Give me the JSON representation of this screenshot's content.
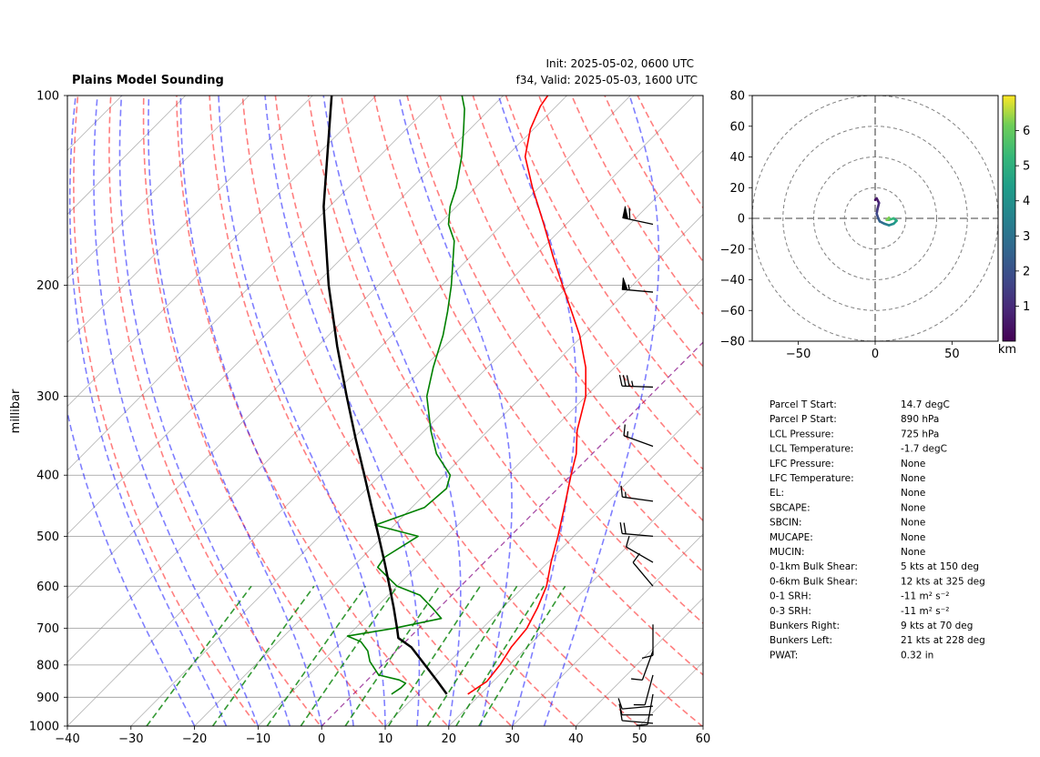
{
  "header": {
    "title": "Plains Model Sounding",
    "init": "Init: 2025-05-02, 0600 UTC",
    "valid": "f34, Valid: 2025-05-03, 1600 UTC"
  },
  "colors": {
    "temperature": "#ff0000",
    "dewpoint": "#008000",
    "parcel": "#000000",
    "dry_adiabat": "#ff0000",
    "moist_adiabat": "#0000ff",
    "mixing_ratio": "#008000",
    "isotherm": "#808080",
    "zero_isotherm": "#800080"
  },
  "chart_data": [
    {
      "type": "skew-t",
      "ylabel": "millibar",
      "y_scale": "log",
      "xlim": [
        -40,
        60
      ],
      "ylim": [
        1000,
        100
      ],
      "x_ticks": [
        "−40",
        "−30",
        "−20",
        "−10",
        "0",
        "10",
        "20",
        "30",
        "40",
        "50",
        "60"
      ],
      "y_ticks": [
        "100",
        "200",
        "300",
        "400",
        "500",
        "600",
        "700",
        "800",
        "900",
        "1000"
      ],
      "grid": true,
      "series": [
        {
          "key": "temperature",
          "points": [
            [
              890,
              18.0
            ],
            [
              850,
              19.0
            ],
            [
              800,
              18.5
            ],
            [
              750,
              17.5
            ],
            [
              700,
              17.0
            ],
            [
              650,
              15.5
            ],
            [
              600,
              13.5
            ],
            [
              550,
              10.5
            ],
            [
              500,
              7.5
            ],
            [
              450,
              4.0
            ],
            [
              400,
              0.0
            ],
            [
              370,
              -2.5
            ],
            [
              340,
              -6.0
            ],
            [
              300,
              -10.0
            ],
            [
              270,
              -14.5
            ],
            [
              240,
              -20.5
            ],
            [
              220,
              -25.5
            ],
            [
              200,
              -31.0
            ],
            [
              180,
              -37.0
            ],
            [
              160,
              -43.5
            ],
            [
              140,
              -51.0
            ],
            [
              125,
              -57.0
            ],
            [
              113,
              -60.5
            ],
            [
              104,
              -62.5
            ],
            [
              100,
              -63.0
            ]
          ]
        },
        {
          "key": "dewpoint",
          "points": [
            [
              890,
              6.0
            ],
            [
              870,
              6.5
            ],
            [
              855,
              6.5
            ],
            [
              845,
              5.0
            ],
            [
              830,
              1.0
            ],
            [
              790,
              -2.5
            ],
            [
              760,
              -4.5
            ],
            [
              735,
              -7.0
            ],
            [
              720,
              -10.0
            ],
            [
              700,
              -4.0
            ],
            [
              675,
              2.0
            ],
            [
              650,
              -1.0
            ],
            [
              620,
              -5.0
            ],
            [
              600,
              -10.0
            ],
            [
              560,
              -16.0
            ],
            [
              540,
              -16.5
            ],
            [
              500,
              -14.5
            ],
            [
              480,
              -23.0
            ],
            [
              450,
              -18.0
            ],
            [
              420,
              -17.5
            ],
            [
              400,
              -19.0
            ],
            [
              370,
              -24.5
            ],
            [
              340,
              -29.0
            ],
            [
              300,
              -35.0
            ],
            [
              270,
              -38.5
            ],
            [
              240,
              -42.0
            ],
            [
              220,
              -45.0
            ],
            [
              200,
              -48.5
            ],
            [
              170,
              -55.0
            ],
            [
              160,
              -58.5
            ],
            [
              150,
              -61.0
            ],
            [
              140,
              -63.0
            ],
            [
              125,
              -67.0
            ],
            [
              113,
              -71.0
            ],
            [
              105,
              -74.0
            ],
            [
              100,
              -76.5
            ]
          ]
        },
        {
          "key": "parcel",
          "points": [
            [
              890,
              14.7
            ],
            [
              850,
              11.3
            ],
            [
              800,
              6.7
            ],
            [
              750,
              1.8
            ],
            [
              725,
              -1.7
            ],
            [
              700,
              -3.4
            ],
            [
              650,
              -7.1
            ],
            [
              600,
              -11.2
            ],
            [
              550,
              -15.7
            ],
            [
              500,
              -20.7
            ],
            [
              450,
              -26.3
            ],
            [
              400,
              -32.5
            ],
            [
              350,
              -39.6
            ],
            [
              300,
              -47.6
            ],
            [
              250,
              -56.9
            ],
            [
              200,
              -67.8
            ],
            [
              150,
              -80.9
            ],
            [
              100,
              -97.0
            ]
          ]
        }
      ],
      "dry_adiabats_theta_K": [
        263,
        273,
        283,
        293,
        303,
        313,
        323,
        333,
        343,
        353,
        363,
        373,
        383,
        393,
        403,
        413,
        423,
        433
      ],
      "moist_adiabats_start_C": [
        -20,
        -15,
        -10,
        -5,
        0,
        5,
        10,
        15,
        20,
        25,
        30,
        35
      ],
      "mixing_ratio_lines_g_kg": [
        0.4,
        1,
        2,
        3,
        5,
        8,
        12,
        16,
        20
      ],
      "wind_barbs": [
        {
          "p": 160,
          "speed_kt": 60,
          "dir_deg": 282
        },
        {
          "p": 205,
          "speed_kt": 55,
          "dir_deg": 275
        },
        {
          "p": 290,
          "speed_kt": 35,
          "dir_deg": 272
        },
        {
          "p": 360,
          "speed_kt": 15,
          "dir_deg": 290
        },
        {
          "p": 440,
          "speed_kt": 15,
          "dir_deg": 278
        },
        {
          "p": 500,
          "speed_kt": 20,
          "dir_deg": 275
        },
        {
          "p": 550,
          "speed_kt": 10,
          "dir_deg": 300
        },
        {
          "p": 600,
          "speed_kt": 10,
          "dir_deg": 320
        },
        {
          "p": 690,
          "speed_kt": 10,
          "dir_deg": 180
        },
        {
          "p": 760,
          "speed_kt": 10,
          "dir_deg": 200
        },
        {
          "p": 830,
          "speed_kt": 10,
          "dir_deg": 195
        },
        {
          "p": 890,
          "speed_kt": 10,
          "dir_deg": 190
        },
        {
          "p": 930,
          "speed_kt": 10,
          "dir_deg": 265
        },
        {
          "p": 960,
          "speed_kt": 10,
          "dir_deg": 270
        },
        {
          "p": 990,
          "speed_kt": 10,
          "dir_deg": 275
        }
      ]
    },
    {
      "type": "hodograph",
      "xlim": [
        -80,
        80
      ],
      "ylim": [
        -80,
        80
      ],
      "x_ticks": [
        "−50",
        "0",
        "50"
      ],
      "y_ticks": [
        "80",
        "60",
        "40",
        "20",
        "0",
        "−20",
        "−40",
        "−60",
        "−80"
      ],
      "ring_radii_kt": [
        20,
        40,
        60,
        80
      ],
      "colorbar": {
        "label": "km",
        "min": 0,
        "max": 7,
        "ticks": [
          "1",
          "2",
          "3",
          "4",
          "5",
          "6"
        ]
      },
      "points": [
        {
          "u": 0.0,
          "v": 12.0,
          "z": 0.1
        },
        {
          "u": 1.0,
          "v": 13.0,
          "z": 0.4
        },
        {
          "u": 2.5,
          "v": 10.0,
          "z": 0.8
        },
        {
          "u": 1.5,
          "v": 6.0,
          "z": 1.2
        },
        {
          "u": 1.0,
          "v": 3.0,
          "z": 1.6
        },
        {
          "u": 2.0,
          "v": 0.0,
          "z": 2.0
        },
        {
          "u": 3.0,
          "v": -2.0,
          "z": 2.4
        },
        {
          "u": 6.0,
          "v": -3.5,
          "z": 3.0
        },
        {
          "u": 9.0,
          "v": -4.5,
          "z": 3.5
        },
        {
          "u": 12.0,
          "v": -3.5,
          "z": 4.0
        },
        {
          "u": 14.0,
          "v": -1.5,
          "z": 4.5
        },
        {
          "u": 12.0,
          "v": 0.0,
          "z": 5.0
        },
        {
          "u": 9.0,
          "v": -1.0,
          "z": 5.5
        },
        {
          "u": 7.5,
          "v": -1.0,
          "z": 6.0
        },
        {
          "u": 9.0,
          "v": 0.5,
          "z": 6.5
        }
      ]
    }
  ],
  "parameters": [
    {
      "label": "Parcel T Start:",
      "value": "14.7 degC"
    },
    {
      "label": "Parcel P Start:",
      "value": "890 hPa"
    },
    {
      "label": "LCL Pressure:",
      "value": "725 hPa"
    },
    {
      "label": "LCL Temperature:",
      "value": "-1.7 degC"
    },
    {
      "label": "LFC Pressure:",
      "value": "None"
    },
    {
      "label": "LFC Temperature:",
      "value": "None"
    },
    {
      "label": "EL:",
      "value": "None"
    },
    {
      "label": "SBCAPE:",
      "value": "None"
    },
    {
      "label": "SBCIN:",
      "value": "None"
    },
    {
      "label": "MUCAPE:",
      "value": "None"
    },
    {
      "label": "MUCIN:",
      "value": "None"
    },
    {
      "label": "0-1km Bulk Shear:",
      "value": "5 kts at 150 deg"
    },
    {
      "label": "0-6km Bulk Shear:",
      "value": "12 kts at 325 deg"
    },
    {
      "label": "0-1 SRH:",
      "value": "-11 m² s⁻²"
    },
    {
      "label": "0-3 SRH:",
      "value": "-11 m² s⁻²"
    },
    {
      "label": "Bunkers Right:",
      "value": "9 kts at 70 deg"
    },
    {
      "label": "Bunkers Left:",
      "value": "21 kts at 228 deg"
    },
    {
      "label": "PWAT:",
      "value": "0.32 in"
    }
  ]
}
